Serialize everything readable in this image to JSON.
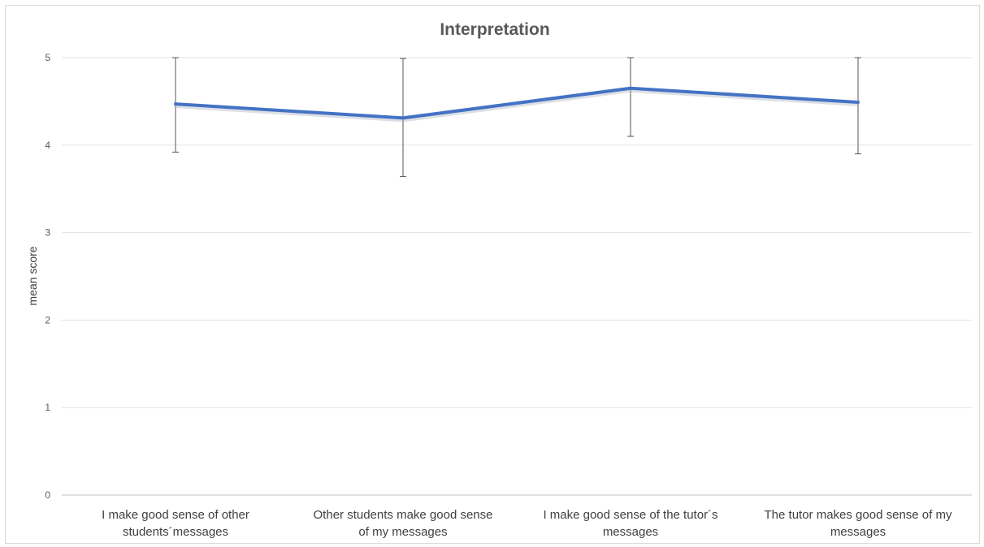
{
  "chart_data": {
    "type": "line",
    "title": "Interpretation",
    "xlabel": "",
    "ylabel": "mean score",
    "ylim": [
      0,
      5
    ],
    "yticks": [
      0,
      1,
      2,
      3,
      4,
      5
    ],
    "grid": true,
    "legend": "none",
    "categories": [
      [
        "I make good sense of other",
        "students´messages"
      ],
      [
        "Other students make good sense",
        "of my messages"
      ],
      [
        "I make good sense of the tutor´s",
        "messages"
      ],
      [
        "The tutor makes good sense of my",
        "messages"
      ]
    ],
    "series": [
      {
        "values": [
          4.47,
          4.31,
          4.65,
          4.49
        ],
        "error_low": [
          3.92,
          3.64,
          4.1,
          3.9
        ],
        "error_high": [
          5.0,
          4.99,
          5.0,
          5.0
        ],
        "color": "#4472c4"
      }
    ]
  }
}
